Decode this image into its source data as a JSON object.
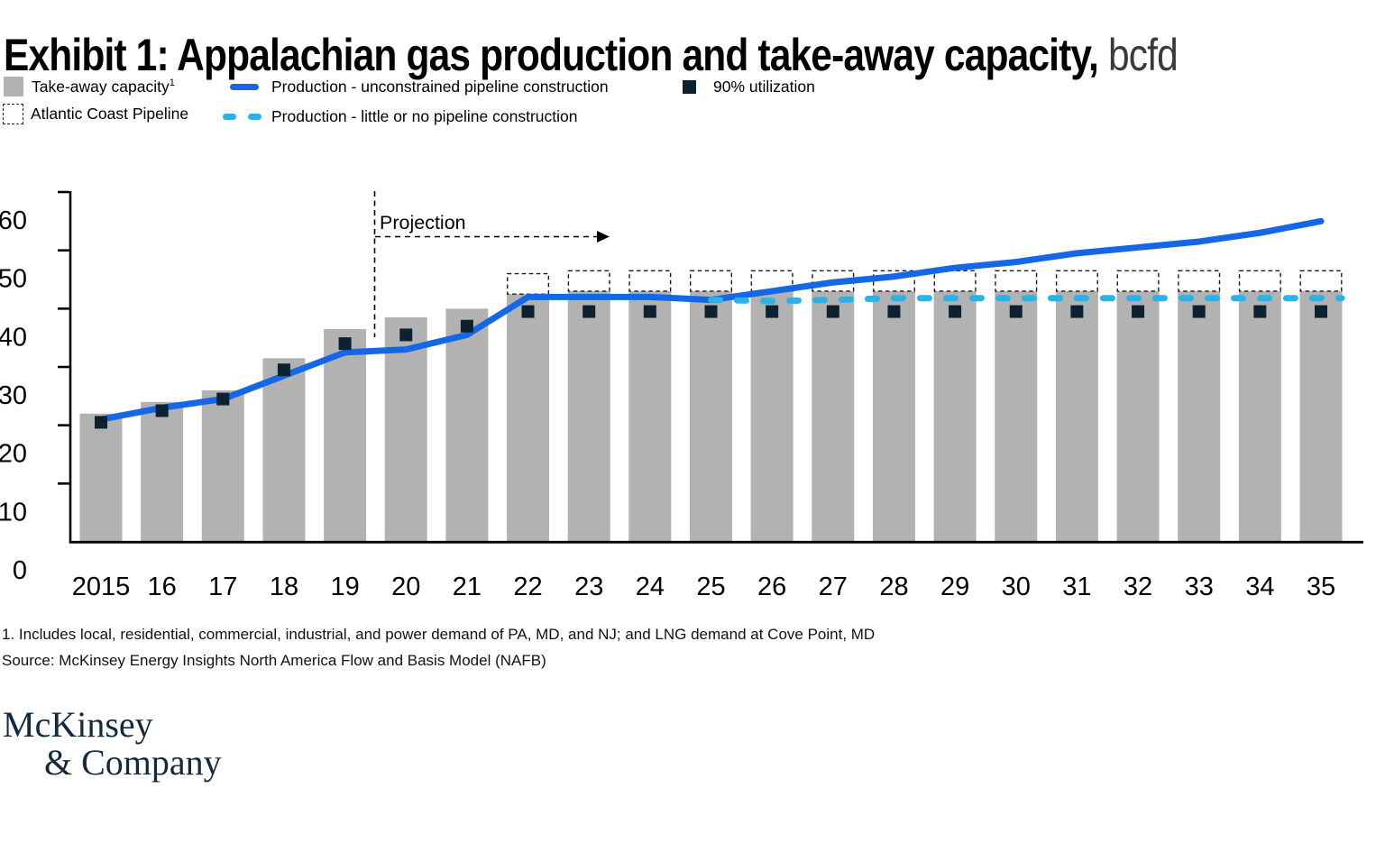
{
  "title": {
    "main": "Exhibit 1: Appalachian gas production and take-away capacity,",
    "unit": "bcfd"
  },
  "legend": {
    "takeaway": {
      "label": "Take-away capacity",
      "sup": "1"
    },
    "acp": {
      "label": "Atlantic Coast Pipeline"
    },
    "unconstrained": {
      "label": "Production - unconstrained pipeline construction"
    },
    "constrained": {
      "label": "Production - little or no pipeline construction"
    },
    "utilization": {
      "label": "90% utilization"
    }
  },
  "annotations": {
    "projection": "Projection"
  },
  "footnote": "1. Includes local, residential, commercial, industrial, and power demand of PA, MD, and NJ; and LNG demand at Cove Point, MD",
  "source": "Source: McKinsey Energy Insights North America Flow and Basis Model (NAFB)",
  "logo": {
    "line1": "McKinsey",
    "line2": "& Company"
  },
  "colors": {
    "bar_gray": "#b2b2b2",
    "line_blue": "#1468e6",
    "line_cyan": "#2bb2e6",
    "marker_navy": "#0c2230",
    "axis_black": "#000000",
    "logo_navy": "#14293c"
  },
  "chart_data": {
    "type": "bar",
    "title": "Exhibit 1: Appalachian gas production and take-away capacity, bcfd",
    "categories": [
      "2015",
      "16",
      "17",
      "18",
      "19",
      "20",
      "21",
      "22",
      "23",
      "24",
      "25",
      "26",
      "27",
      "28",
      "29",
      "30",
      "31",
      "32",
      "33",
      "34",
      "35"
    ],
    "ylim": [
      0,
      60
    ],
    "yticks": [
      0,
      10,
      20,
      30,
      40,
      50,
      60
    ],
    "grid": false,
    "legend_position": "top",
    "projection_starts_after": "19",
    "series": [
      {
        "name": "Take-away capacity",
        "type": "bar",
        "color": "#b2b2b2",
        "values": [
          22,
          24,
          26,
          31.5,
          36.5,
          38.5,
          40,
          42.5,
          43,
          43,
          43,
          43,
          43,
          43,
          43,
          43,
          43,
          43,
          43,
          43,
          43
        ]
      },
      {
        "name": "Atlantic Coast Pipeline (additional capacity, dashed outline stacked on take-away capacity)",
        "type": "stacked_outline_bar",
        "color": "#1a1a1a",
        "values": [
          null,
          null,
          null,
          null,
          null,
          null,
          null,
          3.5,
          3.5,
          3.5,
          3.5,
          3.5,
          3.5,
          3.5,
          3.5,
          3.5,
          3.5,
          3.5,
          3.5,
          3.5,
          3.5
        ]
      },
      {
        "name": "Production - unconstrained pipeline construction",
        "type": "line",
        "color": "#1468e6",
        "values": [
          21,
          23,
          24.5,
          28.5,
          32.5,
          33,
          35.5,
          42,
          42,
          42,
          41.5,
          43,
          44.5,
          45.5,
          47,
          48,
          49.5,
          50.5,
          51.5,
          53,
          55
        ]
      },
      {
        "name": "Production - little or no pipeline construction",
        "type": "dashed_line",
        "color": "#2bb2e6",
        "values": [
          null,
          null,
          null,
          null,
          null,
          null,
          null,
          null,
          null,
          null,
          41.5,
          41.3,
          41.5,
          41.8,
          41.8,
          41.8,
          41.8,
          41.8,
          41.8,
          41.8,
          41.8
        ]
      },
      {
        "name": "90% utilization",
        "type": "point",
        "color": "#0c2230",
        "values": [
          20.5,
          22.5,
          24.5,
          29.5,
          34,
          35.5,
          37,
          39.5,
          39.5,
          39.5,
          39.5,
          39.5,
          39.5,
          39.5,
          39.5,
          39.5,
          39.5,
          39.5,
          39.5,
          39.5,
          39.5
        ]
      }
    ]
  }
}
